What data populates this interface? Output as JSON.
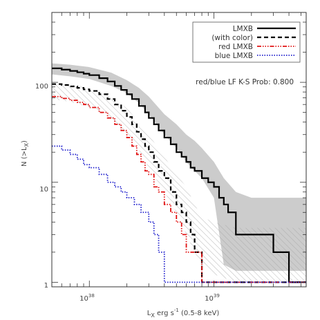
{
  "chart_data": {
    "type": "line",
    "xscale": "log",
    "yscale": "log",
    "xlim": [
      5e+37,
      5.5e+39
    ],
    "ylim": [
      0.9,
      500
    ],
    "xlabel": "L",
    "xlabel_sub": "X",
    "xlabel_rest": " erg s",
    "xlabel_sup": "-1",
    "xlabel_tail": " (0.5-8 keV)",
    "ylabel_pre": "N (>L",
    "ylabel_sub": "X",
    "ylabel_post": ")",
    "x_ticks": [
      {
        "value": 1e+38,
        "base": "10",
        "exp": "38"
      },
      {
        "value": 1e+39,
        "base": "10",
        "exp": "39"
      }
    ],
    "y_ticks": [
      {
        "value": 1,
        "label": "1"
      },
      {
        "value": 10,
        "label": "10"
      },
      {
        "value": 100,
        "label": "100"
      }
    ],
    "annotation": "red/blue LF K-S Prob: 0.800",
    "legend": [
      {
        "name": "LMXB",
        "color": "#000000",
        "dash": "",
        "width": 2.2
      },
      {
        "name": "(with color)",
        "color": "#000000",
        "dash": "6,4",
        "width": 2.2
      },
      {
        "name": "red LMXB",
        "color": "#e01010",
        "dash": "6,2,1.5,2,1.5,2,1.5,2",
        "width": 1.8
      },
      {
        "name": "blue LMXB",
        "color": "#1c1ccc",
        "dash": "1.5,2",
        "width": 1.8
      }
    ],
    "grey_band": {
      "color": "#cccccc",
      "x": [
        5e+37,
        7e+37,
        1e+38,
        1.5e+38,
        2e+38,
        2.5e+38,
        3e+38,
        4e+38,
        5e+38,
        6e+38,
        7e+38,
        8e+38,
        1e+39,
        1.2e+39,
        1.5e+39,
        2e+39,
        3e+39,
        5.5e+39
      ],
      "upper": [
        155,
        150,
        142,
        125,
        105,
        88,
        72,
        48,
        38,
        30,
        26,
        22,
        16,
        11,
        8,
        7,
        7,
        7
      ],
      "lower": [
        120,
        115,
        108,
        92,
        78,
        62,
        48,
        30,
        22,
        16,
        13,
        11,
        7,
        1.5,
        1.3,
        1.3,
        1.3,
        1.3
      ]
    },
    "hatch_band": {
      "color": "#9a9a9a",
      "x": [
        5e+37,
        7e+37,
        1e+38,
        1.5e+38,
        2e+38,
        2.5e+38,
        3e+38,
        4e+38,
        5e+38,
        6e+38,
        7e+38,
        8e+38,
        1e+39,
        1.5e+39,
        2e+39,
        3e+39,
        5.5e+39
      ],
      "upper": [
        100,
        96,
        88,
        72,
        55,
        40,
        30,
        18,
        12,
        9,
        6,
        4.5,
        4,
        3.5,
        3.5,
        3.5,
        3.5
      ],
      "lower": [
        68,
        64,
        56,
        44,
        30,
        21,
        14,
        8,
        5,
        3,
        2,
        1.5,
        1.2,
        1.0,
        1.0,
        1.0,
        1.0
      ]
    },
    "series": [
      {
        "name": "LMXB",
        "color": "#000000",
        "dash": "",
        "width": 2.2,
        "x": [
          5e+37,
          6e+37,
          7e+37,
          8e+37,
          9e+37,
          1e+38,
          1.2e+38,
          1.4e+38,
          1.6e+38,
          1.8e+38,
          2e+38,
          2.2e+38,
          2.5e+38,
          2.8e+38,
          3e+38,
          3.3e+38,
          3.6e+38,
          4e+38,
          4.5e+38,
          5e+38,
          5.5e+38,
          6e+38,
          6.5e+38,
          7e+38,
          8e+38,
          9e+38,
          1e+39,
          1.1e+39,
          1.2e+39,
          1.3e+39,
          1.5e+39,
          2e+39,
          2.5e+39,
          3e+39,
          4e+39,
          5e+39
        ],
        "y": [
          138,
          134,
          130,
          126,
          122,
          118,
          110,
          102,
          92,
          84,
          76,
          68,
          58,
          50,
          44,
          38,
          33,
          28,
          24,
          20,
          18,
          16,
          14,
          13,
          11,
          10,
          9,
          7,
          6,
          5,
          3,
          3,
          3,
          2,
          1,
          1
        ]
      },
      {
        "name": "(with color)",
        "color": "#000000",
        "dash": "6,4",
        "width": 2.2,
        "x": [
          5e+37,
          6e+37,
          7e+37,
          8e+37,
          9e+37,
          1e+38,
          1.2e+38,
          1.4e+38,
          1.6e+38,
          1.8e+38,
          2e+38,
          2.2e+38,
          2.4e+38,
          2.6e+38,
          2.8e+38,
          3e+38,
          3.3e+38,
          3.6e+38,
          4e+38,
          4.5e+38,
          5e+38,
          5.5e+38,
          6e+38,
          6.5e+38,
          7e+38,
          8e+38,
          1e+39,
          2e+39,
          3e+39,
          5e+39
        ],
        "y": [
          96,
          94,
          91,
          88,
          85,
          82,
          76,
          68,
          60,
          52,
          45,
          38,
          32,
          27,
          23,
          20,
          16,
          13,
          11,
          8,
          6,
          5,
          4,
          3,
          2,
          1,
          1,
          1,
          1,
          1
        ]
      },
      {
        "name": "red LMXB",
        "color": "#e01010",
        "dash": "6,2,1.5,2,1.5,2,1.5,2",
        "width": 1.8,
        "x": [
          5e+37,
          6e+37,
          7e+37,
          8e+37,
          9e+37,
          1e+38,
          1.2e+38,
          1.4e+38,
          1.6e+38,
          1.8e+38,
          2e+38,
          2.2e+38,
          2.4e+38,
          2.6e+38,
          2.8e+38,
          3e+38,
          3.3e+38,
          3.6e+38,
          4e+38,
          4.5e+38,
          5e+38,
          5.5e+38,
          6e+38,
          6.5e+38,
          7e+38,
          8e+38,
          1e+39,
          2e+39,
          3e+39,
          5e+39
        ],
        "y": [
          72,
          69,
          66,
          63,
          60,
          56,
          50,
          44,
          38,
          33,
          28,
          23,
          19,
          16,
          13,
          12,
          9,
          8,
          6,
          5,
          4,
          3,
          2,
          2,
          2,
          1,
          1,
          1,
          1,
          1
        ]
      },
      {
        "name": "blue LMXB",
        "color": "#1c1ccc",
        "dash": "1.5,2",
        "width": 1.8,
        "x": [
          5e+37,
          6e+37,
          7e+37,
          8e+37,
          9e+37,
          1e+38,
          1.2e+38,
          1.4e+38,
          1.6e+38,
          1.8e+38,
          2e+38,
          2.3e+38,
          2.6e+38,
          3e+38,
          3.3e+38,
          3.6e+38,
          4e+38,
          5e+38,
          7e+38,
          1e+39
        ],
        "y": [
          23,
          21,
          19,
          17,
          15,
          14,
          12,
          10,
          9,
          8,
          7,
          6,
          5,
          4,
          3,
          2,
          1,
          1,
          1,
          1
        ]
      }
    ]
  }
}
